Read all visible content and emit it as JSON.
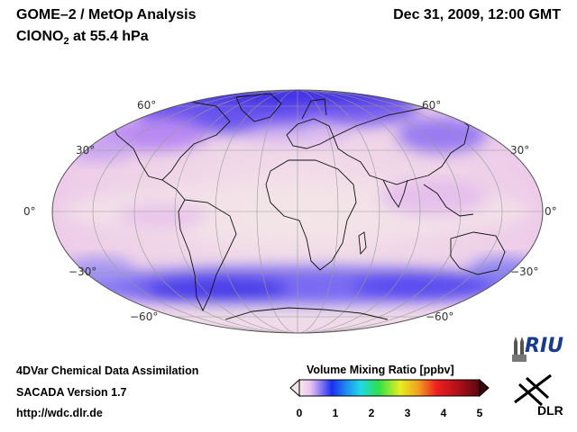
{
  "header": {
    "title": "GOME–2 / MetOp Analysis",
    "species": "ClONO",
    "species_sub": "2",
    "level": " at 55.4 hPa",
    "datetime": "Dec 31, 2009, 12:00 GMT"
  },
  "map": {
    "projection": "Mollweide",
    "lat_labels_left": [
      "60°",
      "30°",
      "0°",
      "−30°",
      "−60°"
    ],
    "lat_labels_right": [
      "60°",
      "30°",
      "0°",
      "−30°",
      "−60°"
    ]
  },
  "colorbar": {
    "title": "Volume Mixing Ratio [ppbv]",
    "ticks": [
      "0",
      "1",
      "2",
      "3",
      "4",
      "5"
    ],
    "range": [
      0,
      5
    ]
  },
  "footer": {
    "line1": "4DVar Chemical Data Assimilation",
    "line2": "SACADA Version 1.7",
    "url": "http://wdc.dlr.de"
  },
  "logos": {
    "riu": "RIU",
    "dlr": "DLR"
  },
  "colors": {
    "low": "#f3dede",
    "mid": "#e9b8f0",
    "high": "#5a4ef0"
  }
}
